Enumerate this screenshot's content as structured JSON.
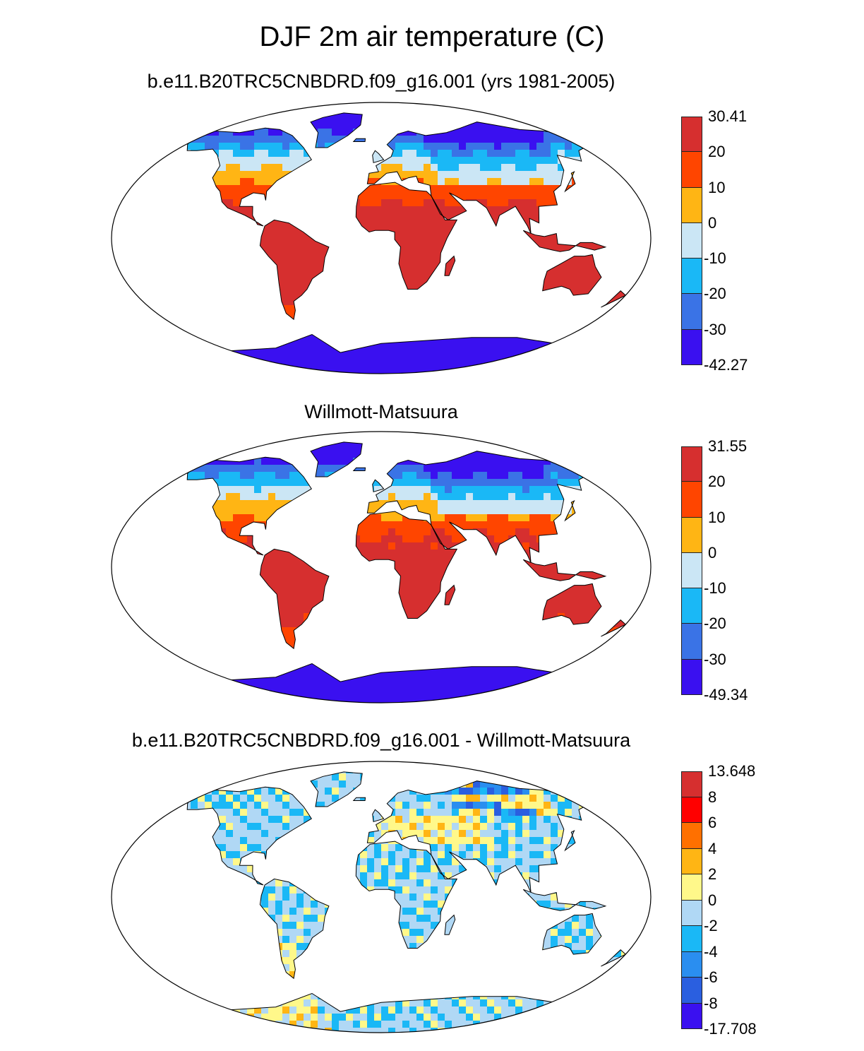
{
  "title": "DJF 2m air temperature (C)",
  "colors": {
    "ocean": "#ffffff",
    "coast": "#000000"
  },
  "panels": [
    {
      "title": "b.e11.B20TRC5CNBDRD.f09_g16.001 (yrs 1981-2005)",
      "colorbar": {
        "labels": [
          "30.41",
          "20",
          "10",
          "0",
          "-10",
          "-20",
          "-30",
          "-42.27"
        ],
        "colors": [
          "#d62f2f",
          "#ff4500",
          "#ffb514",
          "#cbe6f5",
          "#1ab8f6",
          "#3a73e6",
          "#3a10f0"
        ]
      }
    },
    {
      "title": "Willmott-Matsuura",
      "colorbar": {
        "labels": [
          "31.55",
          "20",
          "10",
          "0",
          "-10",
          "-20",
          "-30",
          "-49.34"
        ],
        "colors": [
          "#d62f2f",
          "#ff4500",
          "#ffb514",
          "#cbe6f5",
          "#1ab8f6",
          "#3a73e6",
          "#3a10f0"
        ]
      }
    },
    {
      "title": "b.e11.B20TRC5CNBDRD.f09_g16.001 - Willmott-Matsuura",
      "colorbar": {
        "labels": [
          "13.648",
          "8",
          "6",
          "4",
          "2",
          "0",
          "-2",
          "-4",
          "-6",
          "-8",
          "-17.708"
        ],
        "colors": [
          "#d62f2f",
          "#ff0000",
          "#ff7000",
          "#ffb514",
          "#fff88a",
          "#b0d8f5",
          "#1ab8f6",
          "#2a8ef0",
          "#2a5fe0",
          "#3a10f0"
        ]
      }
    }
  ]
}
